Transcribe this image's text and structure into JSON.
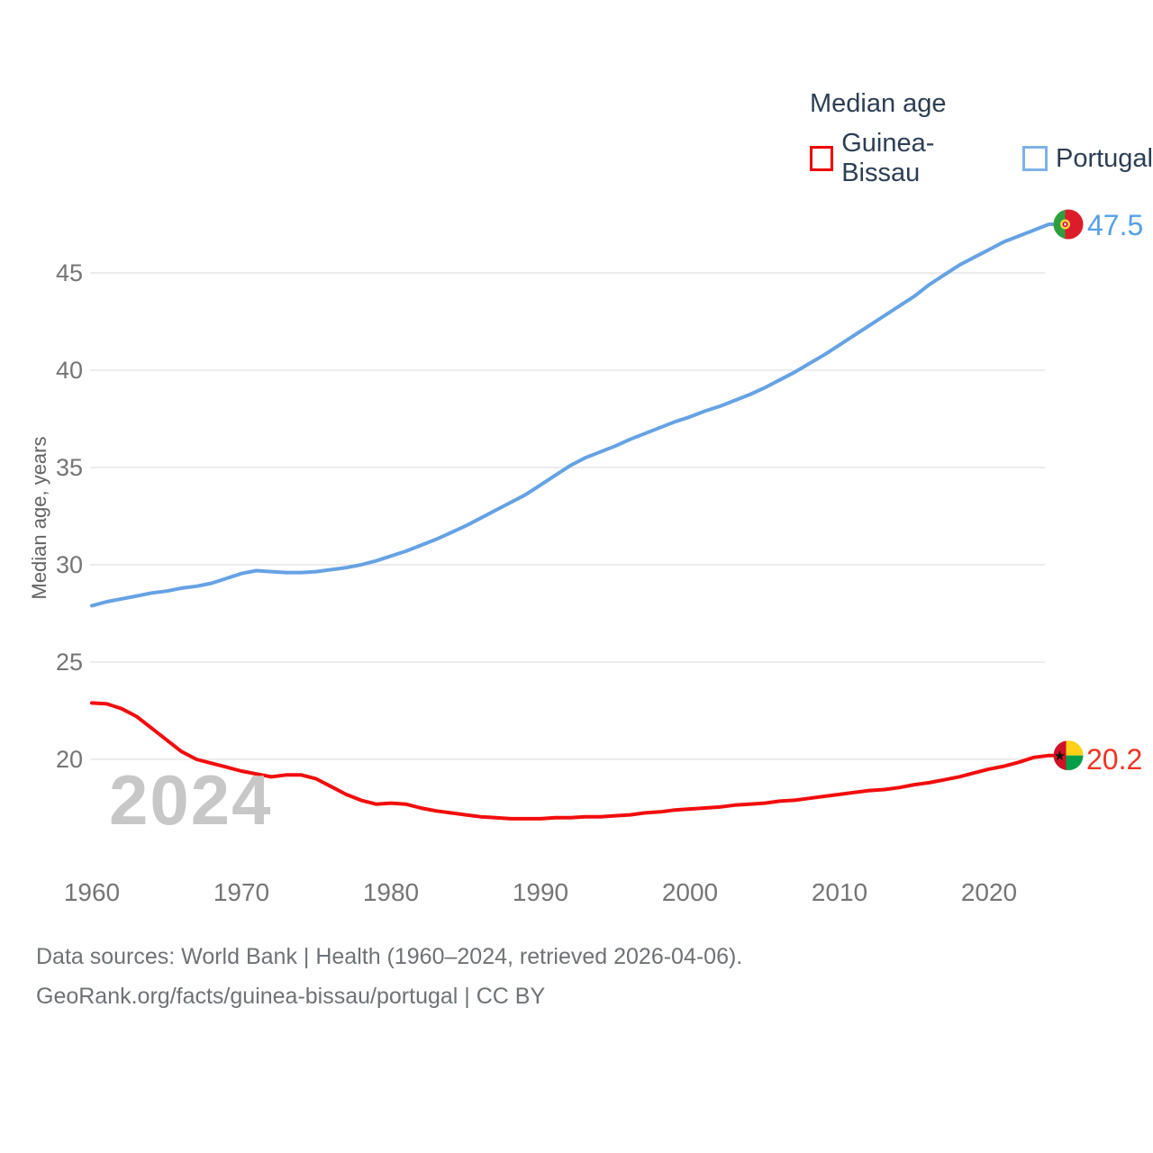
{
  "legend": {
    "title": "Median age",
    "items": [
      {
        "label": "Guinea-Bissau",
        "swatch_color": "#ee0000"
      },
      {
        "label": "Portugal",
        "swatch_color": "#7fb1e8"
      }
    ]
  },
  "watermark": "2024",
  "footer": {
    "line1": "Data sources: World Bank | Health (1960–2024, retrieved 2026-04-06).",
    "line2": "GeoRank.org/facts/guinea-bissau/portugal | CC BY"
  },
  "colors": {
    "grid": "#ececec",
    "tick_text": "#757575",
    "legend_text": "#2d3e54",
    "watermark": "#c7c7c7"
  },
  "chart_data": {
    "type": "line",
    "title": "Median age",
    "xlabel": "",
    "ylabel": "Median age, years",
    "x_start": 1960,
    "x_end": 2024,
    "xticks": [
      1960,
      1970,
      1980,
      1990,
      2000,
      2010,
      2020
    ],
    "yticks": [
      20,
      25,
      30,
      35,
      40,
      45
    ],
    "ylim": [
      16.5,
      48.5
    ],
    "grid": "horizontal-only",
    "legend_position": "top-right",
    "series": [
      {
        "name": "Guinea-Bissau",
        "color": "#f20d0d",
        "label_color": "#ee3424",
        "end_label": "20.2",
        "end_value": 20.2,
        "flag": "guinea-bissau",
        "flag_colors": {
          "red": "#ce1126",
          "yellow": "#fcd116",
          "green": "#009e49",
          "star": "#111111"
        },
        "values": [
          22.9,
          22.85,
          22.6,
          22.2,
          21.6,
          21.0,
          20.4,
          20.0,
          19.8,
          19.6,
          19.4,
          19.25,
          19.1,
          19.2,
          19.2,
          19.0,
          18.6,
          18.2,
          17.9,
          17.7,
          17.75,
          17.7,
          17.5,
          17.35,
          17.25,
          17.15,
          17.05,
          17.0,
          16.95,
          16.95,
          16.95,
          17.0,
          17.0,
          17.05,
          17.05,
          17.1,
          17.15,
          17.25,
          17.3,
          17.4,
          17.45,
          17.5,
          17.55,
          17.65,
          17.7,
          17.75,
          17.85,
          17.9,
          18.0,
          18.1,
          18.2,
          18.3,
          18.4,
          18.45,
          18.55,
          18.7,
          18.8,
          18.95,
          19.1,
          19.3,
          19.5,
          19.65,
          19.85,
          20.1,
          20.2
        ]
      },
      {
        "name": "Portugal",
        "color": "#66a2e4",
        "label_color": "#55a0e8",
        "end_label": "47.5",
        "end_value": 47.5,
        "flag": "portugal",
        "flag_colors": {
          "green": "#2f9e3f",
          "red": "#dd1c2a",
          "emblem_yellow": "#ffd24a",
          "emblem_red": "#c8102e"
        },
        "values": [
          27.9,
          28.1,
          28.25,
          28.4,
          28.55,
          28.65,
          28.8,
          28.9,
          29.05,
          29.3,
          29.55,
          29.7,
          29.65,
          29.6,
          29.6,
          29.65,
          29.75,
          29.85,
          30.0,
          30.2,
          30.45,
          30.7,
          31.0,
          31.3,
          31.65,
          32.0,
          32.4,
          32.8,
          33.2,
          33.6,
          34.1,
          34.6,
          35.1,
          35.5,
          35.8,
          36.1,
          36.45,
          36.75,
          37.05,
          37.35,
          37.6,
          37.9,
          38.15,
          38.45,
          38.75,
          39.1,
          39.5,
          39.9,
          40.35,
          40.8,
          41.3,
          41.8,
          42.3,
          42.8,
          43.3,
          43.8,
          44.4,
          44.9,
          45.4,
          45.8,
          46.2,
          46.6,
          46.9,
          47.2,
          47.5
        ]
      }
    ]
  }
}
